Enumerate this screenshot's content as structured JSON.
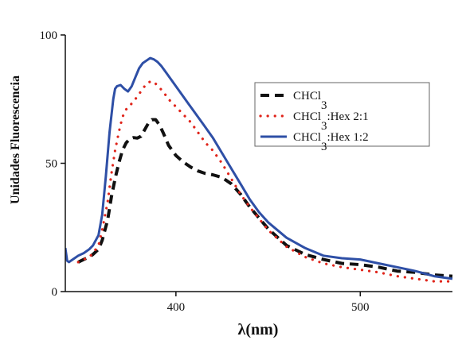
{
  "chart_data": {
    "type": "line",
    "title": "",
    "xlabel": "λ(nm)",
    "ylabel": "Unidades Fluorescencia",
    "xlim": [
      340,
      550
    ],
    "ylim": [
      0,
      100
    ],
    "xticks": [
      400,
      500
    ],
    "yticks": [
      0,
      50,
      100
    ],
    "xtick_labels": [
      "400",
      "500"
    ],
    "ytick_labels": [
      "0",
      "50",
      "100"
    ],
    "grid": false,
    "legend_position": "right",
    "series": [
      {
        "name": "CHCl3",
        "name_main": "CHCl",
        "name_sub": "3",
        "name_rest": "",
        "color": "#111111",
        "style": "dashed",
        "x": [
          347,
          350,
          353,
          355,
          358,
          360,
          363,
          365,
          367,
          369,
          371,
          373,
          375,
          377,
          379,
          381,
          383,
          385,
          387,
          389,
          391,
          393,
          396,
          400,
          404,
          408,
          412,
          416,
          420,
          425,
          430,
          435,
          440,
          450,
          460,
          470,
          480,
          490,
          500,
          510,
          520,
          530,
          540,
          550
        ],
        "y": [
          11.5,
          12.5,
          13.5,
          14.5,
          16.5,
          20,
          28,
          37,
          44,
          50,
          55,
          58,
          59.5,
          60,
          59.8,
          60.5,
          63,
          65.5,
          67,
          67,
          65,
          62,
          57,
          53,
          50.5,
          48.5,
          47,
          46,
          45.5,
          44.5,
          42,
          38,
          33,
          24.5,
          18,
          14.5,
          12.5,
          11,
          10.5,
          9.5,
          8,
          7.5,
          6.5,
          6
        ]
      },
      {
        "name": "CHCl3:Hex 2:1",
        "name_main": "CHCl",
        "name_sub": "3",
        "name_rest": ":Hex 2:1",
        "color": "#e0251b",
        "style": "dotted",
        "x": [
          347,
          350,
          353,
          355,
          358,
          360,
          363,
          365,
          367,
          369,
          371,
          373,
          375,
          377,
          379,
          381,
          383,
          385,
          387,
          389,
          391,
          393,
          396,
          400,
          404,
          408,
          412,
          416,
          420,
          425,
          430,
          435,
          440,
          450,
          460,
          470,
          480,
          490,
          500,
          510,
          520,
          530,
          540,
          550
        ],
        "y": [
          11.5,
          12.5,
          13.5,
          15,
          18,
          24,
          35,
          46,
          55,
          62,
          68,
          71,
          72.5,
          74,
          76,
          78,
          80,
          81.5,
          82,
          81,
          79.5,
          78,
          75,
          72,
          69,
          66,
          62,
          58,
          55,
          50,
          44,
          38,
          33,
          24,
          17.5,
          13.5,
          11,
          9.5,
          8.5,
          7.5,
          6,
          5,
          4,
          4
        ]
      },
      {
        "name": "CHCl3:Hex 1:2",
        "name_main": "CHCl",
        "name_sub": "3",
        "name_rest": ":Hex 1:2",
        "color": "#2e4fa6",
        "style": "solid",
        "x": [
          340,
          341,
          342,
          343,
          345,
          347,
          350,
          353,
          355,
          358,
          360,
          362,
          364,
          366,
          367,
          368,
          370,
          372,
          374,
          376,
          378,
          380,
          382,
          384,
          386,
          388,
          390,
          392,
          395,
          400,
          405,
          410,
          415,
          420,
          425,
          430,
          435,
          440,
          445,
          450,
          460,
          470,
          480,
          490,
          500,
          510,
          520,
          530,
          540,
          550
        ],
        "y": [
          17,
          12,
          11.5,
          12,
          13,
          14,
          15,
          16.5,
          18,
          22,
          30,
          45,
          62,
          75,
          79,
          80,
          80.5,
          79,
          78,
          80,
          83.5,
          87,
          89,
          90,
          91,
          90.5,
          89.5,
          88,
          85,
          80,
          75,
          70,
          65,
          60,
          54,
          48,
          42,
          36,
          31,
          27,
          21,
          17,
          14,
          13,
          12.5,
          11,
          9.5,
          8,
          6,
          5
        ]
      }
    ]
  }
}
